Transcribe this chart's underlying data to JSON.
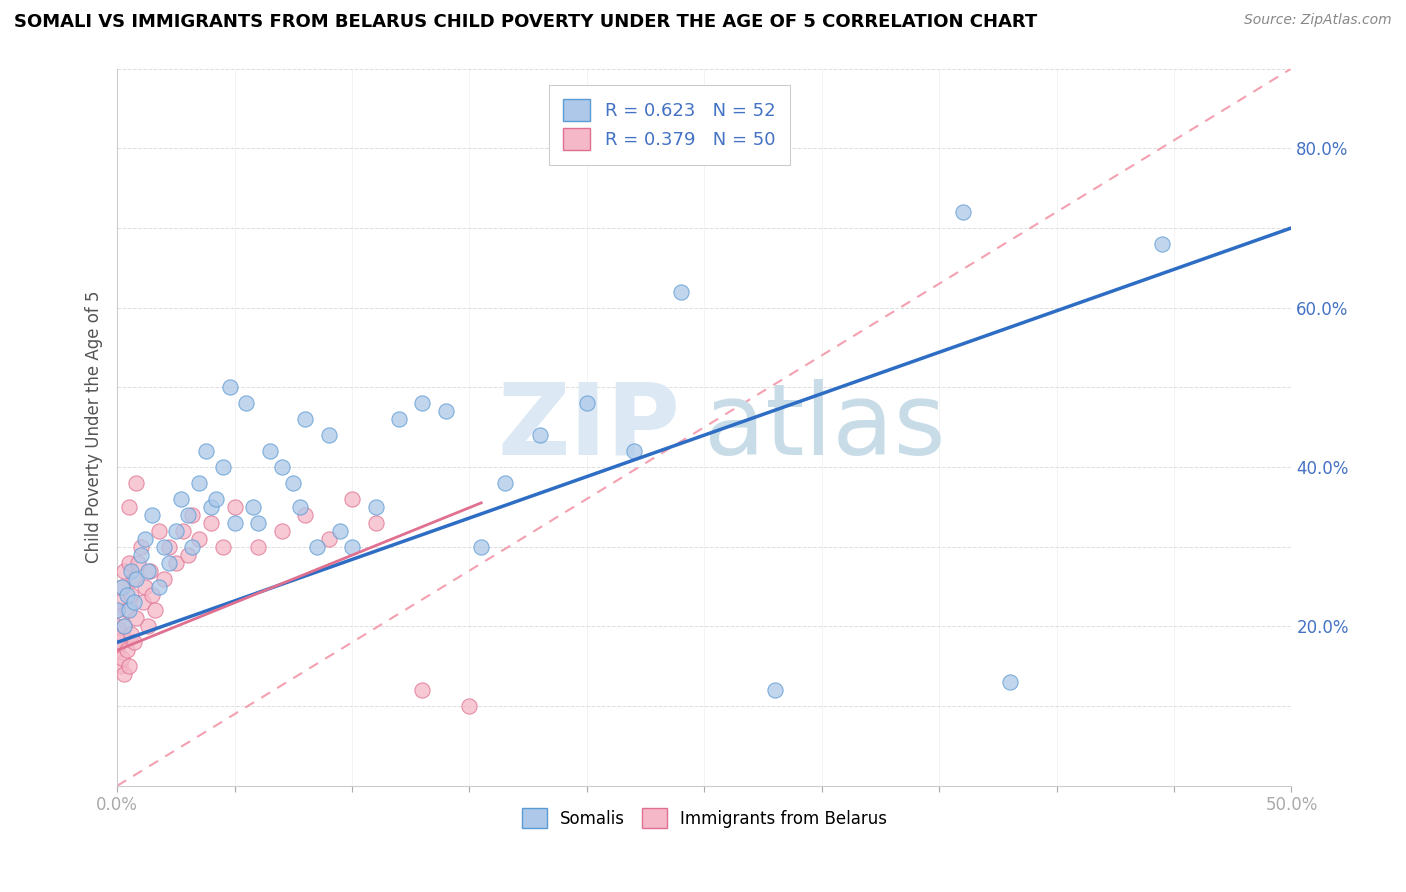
{
  "title": "SOMALI VS IMMIGRANTS FROM BELARUS CHILD POVERTY UNDER THE AGE OF 5 CORRELATION CHART",
  "source": "Source: ZipAtlas.com",
  "ylabel": "Child Poverty Under the Age of 5",
  "xlim": [
    0.0,
    0.5
  ],
  "ylim": [
    0.0,
    0.9
  ],
  "xtick_positions": [
    0.0,
    0.05,
    0.1,
    0.15,
    0.2,
    0.25,
    0.3,
    0.35,
    0.4,
    0.45,
    0.5
  ],
  "xticklabels": [
    "0.0%",
    "",
    "",
    "",
    "",
    "",
    "",
    "",
    "",
    "",
    "50.0%"
  ],
  "ytick_positions": [
    0.0,
    0.1,
    0.2,
    0.3,
    0.4,
    0.5,
    0.6,
    0.7,
    0.8,
    0.9
  ],
  "yticklabels": [
    "",
    "",
    "20.0%",
    "",
    "40.0%",
    "",
    "60.0%",
    "",
    "80.0%",
    ""
  ],
  "somali_R": 0.623,
  "somali_N": 52,
  "belarus_R": 0.379,
  "belarus_N": 50,
  "somali_color": "#adc8e8",
  "somali_edge_color": "#5b9bd5",
  "belarus_color": "#f4b8c8",
  "belarus_edge_color": "#e07090",
  "somali_line_color": "#2e6dc4",
  "belarus_line_color": "#e07090",
  "ref_line_color": "#f4a0b0",
  "watermark_zip_color": "#dce8f4",
  "watermark_atlas_color": "#c8dce8",
  "somali_line_x0": 0.0,
  "somali_line_y0": 0.18,
  "somali_line_x1": 0.5,
  "somali_line_y1": 0.7,
  "belarus_line_x0": 0.0,
  "belarus_line_y0": 0.17,
  "belarus_line_x1": 0.155,
  "belarus_line_y1": 0.355,
  "ref_line_x0": 0.0,
  "ref_line_y0": 0.0,
  "ref_line_x1": 0.5,
  "ref_line_y1": 0.9,
  "somali_scatter_x": [
    0.0,
    0.002,
    0.003,
    0.004,
    0.005,
    0.006,
    0.007,
    0.008,
    0.01,
    0.012,
    0.013,
    0.015,
    0.018,
    0.02,
    0.022,
    0.025,
    0.027,
    0.03,
    0.032,
    0.035,
    0.038,
    0.04,
    0.042,
    0.045,
    0.048,
    0.05,
    0.055,
    0.058,
    0.06,
    0.065,
    0.07,
    0.075,
    0.078,
    0.08,
    0.085,
    0.09,
    0.095,
    0.1,
    0.11,
    0.12,
    0.13,
    0.14,
    0.155,
    0.165,
    0.18,
    0.2,
    0.22,
    0.24,
    0.28,
    0.36,
    0.38,
    0.445
  ],
  "somali_scatter_y": [
    0.22,
    0.25,
    0.2,
    0.24,
    0.22,
    0.27,
    0.23,
    0.26,
    0.29,
    0.31,
    0.27,
    0.34,
    0.25,
    0.3,
    0.28,
    0.32,
    0.36,
    0.34,
    0.3,
    0.38,
    0.42,
    0.35,
    0.36,
    0.4,
    0.5,
    0.33,
    0.48,
    0.35,
    0.33,
    0.42,
    0.4,
    0.38,
    0.35,
    0.46,
    0.3,
    0.44,
    0.32,
    0.3,
    0.35,
    0.46,
    0.48,
    0.47,
    0.3,
    0.38,
    0.44,
    0.48,
    0.42,
    0.62,
    0.12,
    0.72,
    0.13,
    0.68
  ],
  "belarus_scatter_x": [
    0.0,
    0.0,
    0.0,
    0.001,
    0.001,
    0.001,
    0.002,
    0.002,
    0.002,
    0.003,
    0.003,
    0.003,
    0.004,
    0.004,
    0.005,
    0.005,
    0.006,
    0.006,
    0.007,
    0.007,
    0.008,
    0.009,
    0.01,
    0.011,
    0.012,
    0.013,
    0.014,
    0.015,
    0.016,
    0.018,
    0.02,
    0.022,
    0.025,
    0.028,
    0.03,
    0.032,
    0.035,
    0.04,
    0.045,
    0.05,
    0.06,
    0.07,
    0.08,
    0.09,
    0.1,
    0.11,
    0.13,
    0.15,
    0.005,
    0.008
  ],
  "belarus_scatter_y": [
    0.17,
    0.2,
    0.22,
    0.15,
    0.18,
    0.23,
    0.16,
    0.19,
    0.25,
    0.14,
    0.2,
    0.27,
    0.17,
    0.22,
    0.15,
    0.28,
    0.19,
    0.24,
    0.18,
    0.26,
    0.21,
    0.28,
    0.3,
    0.23,
    0.25,
    0.2,
    0.27,
    0.24,
    0.22,
    0.32,
    0.26,
    0.3,
    0.28,
    0.32,
    0.29,
    0.34,
    0.31,
    0.33,
    0.3,
    0.35,
    0.3,
    0.32,
    0.34,
    0.31,
    0.36,
    0.33,
    0.12,
    0.1,
    0.35,
    0.38
  ]
}
